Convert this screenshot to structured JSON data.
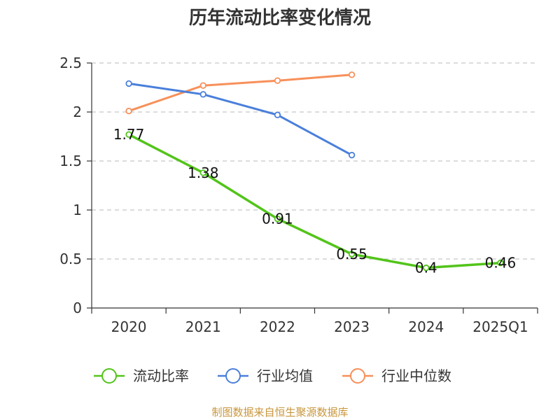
{
  "chart_data": {
    "type": "line",
    "title": "历年流动比率变化情况",
    "categories": [
      "2020",
      "2021",
      "2022",
      "2023",
      "2024",
      "2025Q1"
    ],
    "ylim": [
      0,
      2.5
    ],
    "yticks": [
      "0",
      "0.5",
      "1",
      "1.5",
      "2",
      "2.5"
    ],
    "ytick_values": [
      0,
      0.5,
      1,
      1.5,
      2,
      2.5
    ],
    "grid": true,
    "legend_position": "bottom",
    "series": [
      {
        "name": "流动比率",
        "color": "#52c41a",
        "values": [
          1.77,
          1.38,
          0.91,
          0.55,
          0.41,
          0.46
        ],
        "labels": [
          "1.77",
          "1.38",
          "0.91",
          "0.55",
          "0.4",
          "0.46"
        ]
      },
      {
        "name": "行业均值",
        "color": "#4a7fdb",
        "values": [
          2.29,
          2.18,
          1.97,
          1.56,
          null,
          null
        ],
        "labels": null
      },
      {
        "name": "行业中位数",
        "color": "#f7905a",
        "values": [
          2.01,
          2.27,
          2.32,
          2.38,
          null,
          null
        ],
        "labels": null
      }
    ]
  },
  "source": {
    "text": "制图数据来自恒生聚源数据库",
    "color": "#c8963c"
  }
}
